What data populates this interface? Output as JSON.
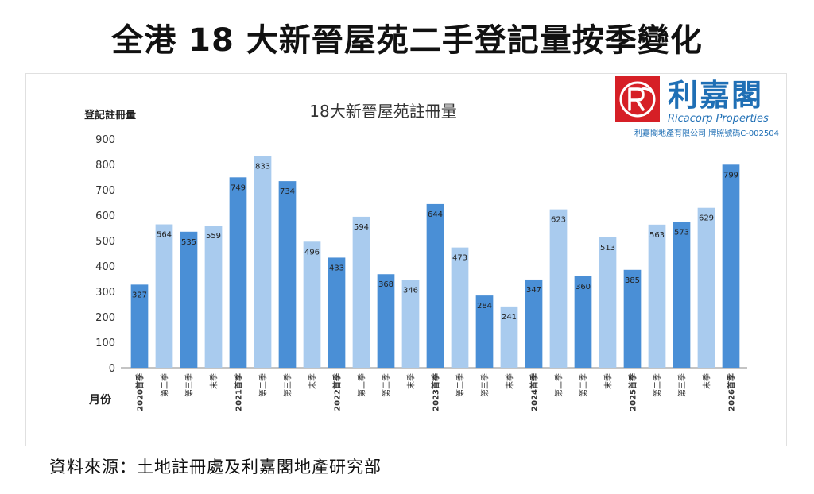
{
  "headline": "全港 18 大新晉屋苑二手登記量按季變化",
  "source_note": "資料來源：土地註冊處及利嘉閣地產研究部",
  "logo": {
    "name": "利嘉閣",
    "english": "Ricacorp Properties",
    "license": "利嘉閣地產有限公司 牌照號碼C-002504"
  },
  "colors": {
    "dark_bar": "#4a8fd6",
    "light_bar": "#a9cbee",
    "brand_red": "#d61f26",
    "brand_blue": "#1f6fb5"
  },
  "chart_data": {
    "type": "bar",
    "title": "18大新晉屋苑註冊量",
    "ylabel": "登記註冊量",
    "xlabel": "月份",
    "ylim": [
      0,
      900
    ],
    "yticks": [
      0,
      100,
      200,
      300,
      400,
      500,
      600,
      700,
      800,
      900
    ],
    "grid": false,
    "categories": [
      "2020首季",
      "第二季",
      "第三季",
      "末季",
      "2021首季",
      "第二季",
      "第三季",
      "末季",
      "2022首季",
      "第二季",
      "第三季",
      "末季",
      "2023首季",
      "第二季",
      "第三季",
      "末季",
      "2024首季",
      "第二季",
      "第三季",
      "末季",
      "2025首季",
      "第二季",
      "第三季",
      "末季",
      "2026首季"
    ],
    "values": [
      327,
      564,
      535,
      559,
      749,
      833,
      734,
      496,
      433,
      594,
      368,
      346,
      644,
      473,
      284,
      241,
      347,
      623,
      360,
      513,
      385,
      563,
      573,
      629,
      799
    ],
    "shades": [
      "dark",
      "light",
      "dark",
      "light",
      "dark",
      "light",
      "dark",
      "light",
      "dark",
      "light",
      "dark",
      "light",
      "dark",
      "light",
      "dark",
      "light",
      "dark",
      "light",
      "dark",
      "light",
      "dark",
      "light",
      "dark",
      "light",
      "dark"
    ]
  }
}
